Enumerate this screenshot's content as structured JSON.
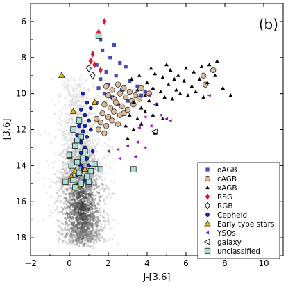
{
  "chart_data": {
    "type": "scatter",
    "panel_label": "(b)",
    "xlabel": "J-[3.6]",
    "ylabel": "[3.6]",
    "xlim": [
      -2,
      11
    ],
    "ylim": [
      19,
      5
    ],
    "x_inverted": false,
    "y_inverted": true,
    "x_ticks": [
      -2,
      0,
      2,
      4,
      6,
      8,
      10
    ],
    "y_ticks": [
      6,
      8,
      10,
      12,
      14,
      16,
      18
    ],
    "grid": false,
    "legend_position": "lower-right",
    "background_density": {
      "description_hidden": true,
      "color_scale": "gray",
      "peak": [
        0.6,
        16.2
      ]
    },
    "series": [
      {
        "name": "oAGB",
        "marker": "square",
        "color": "#4a4ab0",
        "size": "small",
        "points": [
          [
            1.6,
            7.0
          ],
          [
            2.3,
            7.3
          ],
          [
            1.7,
            7.6
          ],
          [
            2.1,
            8.0
          ],
          [
            2.6,
            8.3
          ],
          [
            1.4,
            8.4
          ],
          [
            2.9,
            8.5
          ],
          [
            1.9,
            8.8
          ],
          [
            2.4,
            9.0
          ],
          [
            1.6,
            9.2
          ],
          [
            3.1,
            9.3
          ],
          [
            2.0,
            9.5
          ],
          [
            1.5,
            9.7
          ],
          [
            2.7,
            9.8
          ],
          [
            3.5,
            9.6
          ],
          [
            1.8,
            10.0
          ],
          [
            2.2,
            10.2
          ],
          [
            3.0,
            10.4
          ],
          [
            1.4,
            10.5
          ],
          [
            3.9,
            9.9
          ],
          [
            3.7,
            10.1
          ],
          [
            2.5,
            10.6
          ]
        ]
      },
      {
        "name": "cAGB",
        "marker": "circle",
        "color": "#d9b99a",
        "size": "medium",
        "points": [
          [
            1.9,
            9.6
          ],
          [
            2.2,
            9.8
          ],
          [
            2.5,
            9.5
          ],
          [
            2.8,
            9.7
          ],
          [
            3.1,
            9.9
          ],
          [
            2.0,
            10.1
          ],
          [
            2.3,
            10.3
          ],
          [
            2.6,
            10.0
          ],
          [
            2.9,
            10.2
          ],
          [
            3.2,
            10.4
          ],
          [
            1.8,
            10.6
          ],
          [
            2.1,
            10.8
          ],
          [
            2.4,
            10.5
          ],
          [
            2.7,
            10.7
          ],
          [
            3.0,
            10.9
          ],
          [
            1.7,
            11.1
          ],
          [
            2.0,
            11.3
          ],
          [
            2.3,
            11.0
          ],
          [
            2.6,
            11.2
          ],
          [
            1.6,
            11.6
          ],
          [
            1.9,
            11.8
          ],
          [
            2.2,
            11.5
          ],
          [
            1.5,
            12.0
          ],
          [
            1.8,
            12.2
          ],
          [
            3.4,
            10.1
          ],
          [
            3.6,
            10.3
          ],
          [
            3.3,
            10.6
          ],
          [
            2.8,
            11.1
          ],
          [
            2.5,
            11.7
          ],
          [
            1.4,
            11.4
          ],
          [
            3.7,
            9.7
          ],
          [
            6.9,
            9.0
          ],
          [
            7.4,
            8.7
          ],
          [
            7.0,
            9.5
          ],
          [
            4.1,
            10.0
          ]
        ]
      },
      {
        "name": "xAGB",
        "marker": "triangle",
        "color": "#000000",
        "size": "small",
        "points": [
          [
            3.2,
            9.2
          ],
          [
            3.6,
            9.0
          ],
          [
            4.0,
            9.4
          ],
          [
            4.4,
            8.9
          ],
          [
            4.8,
            9.1
          ],
          [
            5.2,
            8.7
          ],
          [
            5.6,
            9.0
          ],
          [
            6.0,
            8.6
          ],
          [
            6.4,
            8.8
          ],
          [
            6.8,
            8.5
          ],
          [
            7.2,
            8.4
          ],
          [
            7.6,
            8.2
          ],
          [
            3.5,
            9.8
          ],
          [
            3.9,
            10.1
          ],
          [
            4.3,
            9.7
          ],
          [
            4.7,
            9.9
          ],
          [
            5.1,
            9.5
          ],
          [
            5.5,
            9.8
          ],
          [
            5.9,
            9.3
          ],
          [
            6.3,
            9.6
          ],
          [
            6.7,
            9.2
          ],
          [
            7.1,
            9.4
          ],
          [
            7.5,
            9.0
          ],
          [
            3.3,
            10.5
          ],
          [
            3.7,
            10.8
          ],
          [
            4.1,
            10.4
          ],
          [
            4.5,
            10.6
          ],
          [
            4.9,
            10.2
          ],
          [
            5.3,
            10.3
          ],
          [
            5.7,
            10.0
          ],
          [
            6.1,
            10.1
          ],
          [
            6.5,
            9.9
          ],
          [
            3.1,
            11.2
          ],
          [
            3.5,
            11.4
          ],
          [
            3.9,
            11.0
          ],
          [
            4.3,
            11.2
          ],
          [
            2.9,
            11.8
          ],
          [
            3.3,
            12.0
          ],
          [
            3.7,
            11.7
          ],
          [
            4.4,
            12.2
          ],
          [
            4.8,
            11.4
          ],
          [
            8.3,
            10.1
          ],
          [
            7.9,
            9.7
          ],
          [
            6.9,
            10.2
          ],
          [
            5.4,
            9.2
          ],
          [
            3.0,
            12.5
          ],
          [
            4.2,
            8.6
          ],
          [
            5.0,
            8.4
          ]
        ]
      },
      {
        "name": "RSG",
        "marker": "diamond",
        "color": "#e0182f",
        "size": "medium",
        "points": [
          [
            1.8,
            6.0
          ],
          [
            1.5,
            6.6
          ],
          [
            1.2,
            7.8
          ],
          [
            1.3,
            8.4
          ],
          [
            1.6,
            8.7
          ],
          [
            1.1,
            8.2
          ]
        ]
      },
      {
        "name": "RGB",
        "marker": "diamond-open",
        "color": "#000000",
        "size": "medium",
        "points": [
          [
            1.0,
            8.6
          ],
          [
            1.2,
            9.0
          ]
        ]
      },
      {
        "name": "Cepheid",
        "marker": "circle",
        "color": "#1428c8",
        "size": "small",
        "points": [
          [
            0.7,
            10.0
          ],
          [
            0.9,
            10.5
          ],
          [
            0.6,
            10.9
          ],
          [
            0.8,
            11.2
          ],
          [
            1.0,
            11.5
          ],
          [
            0.5,
            11.8
          ],
          [
            0.7,
            12.1
          ],
          [
            0.9,
            12.4
          ],
          [
            0.6,
            12.7
          ],
          [
            0.8,
            13.0
          ],
          [
            1.1,
            12.0
          ],
          [
            0.4,
            12.3
          ],
          [
            0.6,
            13.3
          ],
          [
            0.9,
            13.6
          ],
          [
            0.5,
            13.9
          ],
          [
            0.7,
            14.2
          ],
          [
            0.4,
            14.5
          ],
          [
            0.8,
            14.8
          ],
          [
            1.2,
            13.2
          ],
          [
            0.3,
            13.0
          ],
          [
            1.0,
            14.0
          ],
          [
            0.5,
            15.0
          ],
          [
            0.8,
            11.8
          ],
          [
            1.1,
            10.8
          ],
          [
            0.6,
            14.0
          ]
        ]
      },
      {
        "name": "Early type stars",
        "marker": "triangle",
        "color": "#e6b800",
        "size": "medium",
        "points": [
          [
            -0.4,
            9.0
          ],
          [
            0.2,
            11.0
          ],
          [
            0.0,
            13.5
          ],
          [
            0.3,
            14.3
          ],
          [
            0.1,
            14.6
          ],
          [
            0.5,
            15.1
          ],
          [
            0.8,
            14.2
          ],
          [
            1.3,
            10.5
          ]
        ]
      },
      {
        "name": "YSOs",
        "marker": "triangle-left",
        "color": "#8a14d2",
        "size": "small",
        "points": [
          [
            4.1,
            10.1
          ],
          [
            4.4,
            10.6
          ],
          [
            4.7,
            11.2
          ],
          [
            5.0,
            11.4
          ],
          [
            5.2,
            11.5
          ],
          [
            3.9,
            11.3
          ],
          [
            4.2,
            11.8
          ],
          [
            3.5,
            12.7
          ],
          [
            3.0,
            12.9
          ],
          [
            2.5,
            13.1
          ],
          [
            2.0,
            13.2
          ],
          [
            3.9,
            13.0
          ],
          [
            3.4,
            13.5
          ],
          [
            2.6,
            13.6
          ],
          [
            3.6,
            11.9
          ],
          [
            7.2,
            10.1
          ]
        ]
      },
      {
        "name": "galaxy",
        "marker": "triangle-left-open",
        "color": "#ffffff",
        "size": "medium",
        "points": [
          [
            4.4,
            12.1
          ]
        ]
      },
      {
        "name": "unclassified",
        "marker": "square",
        "color": "#a8ddd8",
        "size": "medium",
        "points": [
          [
            1.5,
            6.8
          ],
          [
            0.5,
            11.5
          ],
          [
            0.2,
            12.0
          ],
          [
            0.6,
            12.4
          ],
          [
            0.3,
            12.9
          ],
          [
            0.0,
            13.4
          ],
          [
            0.4,
            13.8
          ],
          [
            0.7,
            13.6
          ],
          [
            0.1,
            14.0
          ],
          [
            0.5,
            14.4
          ],
          [
            0.9,
            14.6
          ],
          [
            0.2,
            14.8
          ],
          [
            0.6,
            15.0
          ],
          [
            1.0,
            14.9
          ],
          [
            -0.2,
            14.9
          ],
          [
            0.3,
            15.2
          ],
          [
            1.3,
            13.9
          ],
          [
            1.6,
            14.2
          ],
          [
            3.3,
            14.2
          ],
          [
            0.8,
            13.2
          ],
          [
            1.1,
            14.3
          ],
          [
            0.4,
            12.6
          ]
        ]
      }
    ]
  }
}
